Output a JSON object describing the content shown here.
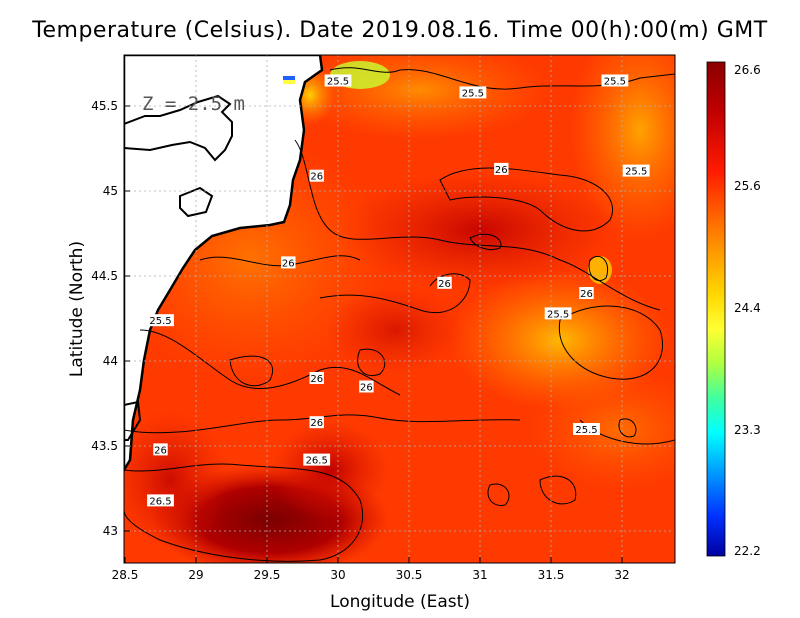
{
  "title": "Temperature (Celsius). Date 2019.08.16. Time 00(h):00(m) GMT",
  "depth_label": "Z = 2.5 m",
  "x_axis": {
    "label": "Longitude (East)",
    "ticks": [
      "28.5",
      "29",
      "29.5",
      "30",
      "30.5",
      "31",
      "31.5",
      "32"
    ]
  },
  "y_axis": {
    "label": "Latitude (North)",
    "ticks": [
      "43",
      "43.5",
      "44",
      "44.5",
      "45",
      "45.5"
    ]
  },
  "colorbar": {
    "ticks": [
      "26.6",
      "25.6",
      "24.4",
      "23.3",
      "22.2"
    ],
    "colors": [
      "#8b0000",
      "#c00000",
      "#ff1a00",
      "#ff6a00",
      "#ffa500",
      "#ffd700",
      "#ffff33",
      "#b0ff40",
      "#40ff9f",
      "#00ffff",
      "#009cff",
      "#0030ff",
      "#0000a0"
    ]
  },
  "contour_labels": [
    {
      "text": "25.5",
      "lon": 30.0,
      "lat": 45.65
    },
    {
      "text": "25.5",
      "lon": 30.95,
      "lat": 45.58
    },
    {
      "text": "25.5",
      "lon": 31.95,
      "lat": 45.65
    },
    {
      "text": "26",
      "lon": 31.15,
      "lat": 45.13
    },
    {
      "text": "25.5",
      "lon": 32.1,
      "lat": 45.12
    },
    {
      "text": "26",
      "lon": 29.85,
      "lat": 45.09
    },
    {
      "text": "26",
      "lon": 29.65,
      "lat": 44.58
    },
    {
      "text": "26",
      "lon": 30.75,
      "lat": 44.46
    },
    {
      "text": "26",
      "lon": 31.75,
      "lat": 44.4
    },
    {
      "text": "25.5",
      "lon": 31.55,
      "lat": 44.28
    },
    {
      "text": "25.5",
      "lon": 28.75,
      "lat": 44.24
    },
    {
      "text": "26",
      "lon": 29.85,
      "lat": 43.9
    },
    {
      "text": "26",
      "lon": 30.2,
      "lat": 43.85
    },
    {
      "text": "26",
      "lon": 29.85,
      "lat": 43.64
    },
    {
      "text": "25.5",
      "lon": 31.75,
      "lat": 43.6
    },
    {
      "text": "26",
      "lon": 28.75,
      "lat": 43.48
    },
    {
      "text": "26.5",
      "lon": 29.85,
      "lat": 43.42
    },
    {
      "text": "26.5",
      "lon": 28.75,
      "lat": 43.18
    }
  ]
}
